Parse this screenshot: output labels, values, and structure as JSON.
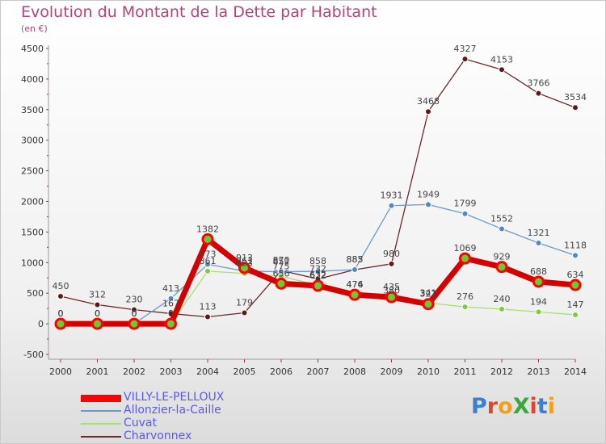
{
  "title": "Evolution du Montant de la Dette par Habitant",
  "unit": "(en €)",
  "logo": "ProXiti",
  "chart_data": {
    "type": "line",
    "title": "Evolution du Montant de la Dette par Habitant",
    "ylabel": "(en €)",
    "xlabel": "",
    "ylim": [
      -500,
      4500
    ],
    "yticks": [
      -500,
      0,
      500,
      1000,
      1500,
      2000,
      2500,
      3000,
      3500,
      4000,
      4500
    ],
    "x": [
      "2000",
      "2001",
      "2002",
      "2003",
      "2004",
      "2005",
      "2006",
      "2007",
      "2008",
      "2009",
      "2010",
      "2011",
      "2012",
      "2013",
      "2014"
    ],
    "grid": false,
    "legend_position": "bottom",
    "series": [
      {
        "name": "VILLY-LE-PELLOUX",
        "color": "#ff0000",
        "values": [
          0,
          0,
          0,
          0,
          1382,
          913,
          656,
          622,
          474,
          435,
          322,
          1069,
          929,
          688,
          634
        ]
      },
      {
        "name": "Allonzier-la-Caille",
        "color": "#6b9ac4",
        "values": [
          0,
          0,
          0,
          413,
          973,
          861,
          851,
          858,
          885,
          1931,
          1949,
          1799,
          1552,
          1321,
          1118
        ]
      },
      {
        "name": "Cuvat",
        "color": "#a8e070",
        "values": [
          0,
          0,
          0,
          0,
          861,
          823,
          775,
          632,
          476,
          380,
          341,
          276,
          240,
          194,
          147
        ]
      },
      {
        "name": "Charvonnex",
        "color": "#6b2a2a",
        "values": [
          450,
          312,
          230,
          167,
          113,
          179,
          870,
          732,
          883,
          980,
          3468,
          4327,
          4153,
          3766,
          3534
        ]
      }
    ],
    "data_labels": [
      {
        "series": "Charvonnex",
        "labels": [
          "450",
          "312",
          "230",
          "167",
          "113",
          "179",
          "870",
          "732",
          "883",
          "980",
          "3468",
          "4327",
          "4153",
          "3766",
          "3534"
        ]
      },
      {
        "series": "Allonzier-la-Caille",
        "labels": [
          "0",
          "0",
          "0",
          "413",
          "973",
          "861",
          "851",
          "858",
          "885",
          "1931",
          "1949",
          "1799",
          "1552",
          "1321",
          "1118"
        ]
      },
      {
        "series": "Cuvat",
        "labels": [
          "0",
          "0",
          "0",
          "0",
          "861",
          "823",
          "775",
          "632",
          "476",
          "380",
          "341",
          "276",
          "240",
          "194",
          "147"
        ]
      },
      {
        "series": "VILLY-LE-PELLOUX",
        "labels": [
          "0",
          "0",
          "0",
          "0",
          "1382",
          "913",
          "656",
          "622",
          "474",
          "435",
          "322",
          "1069",
          "929",
          "688",
          "634"
        ]
      }
    ]
  }
}
